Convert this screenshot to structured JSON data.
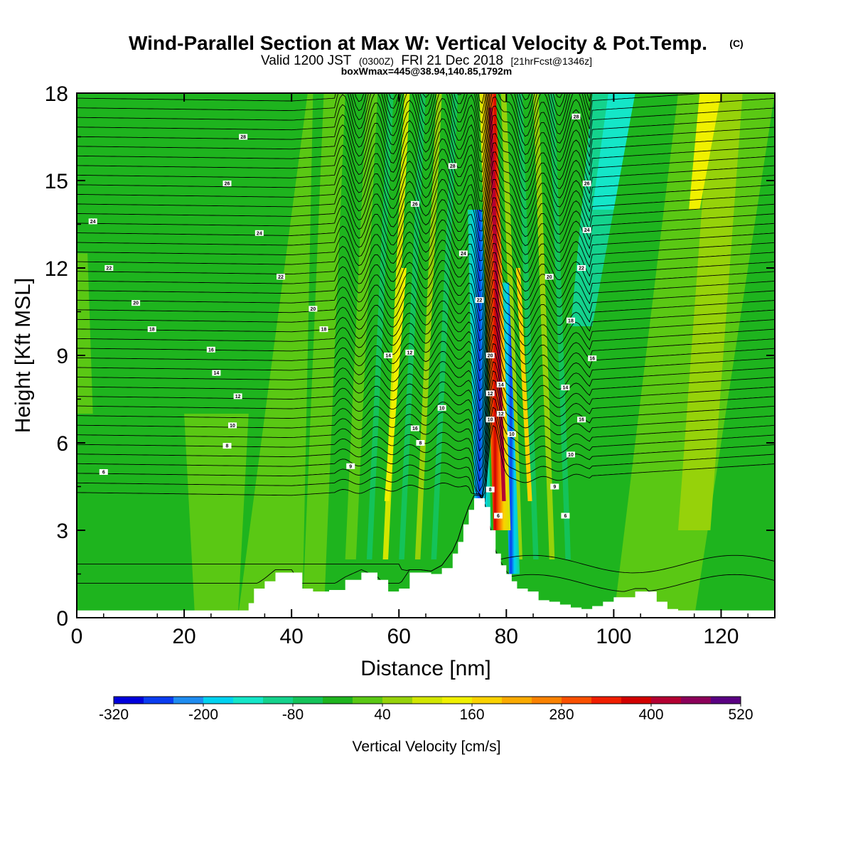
{
  "chart_data": {
    "type": "heatmap",
    "title": "Wind-Parallel Section at Max W: Vertical Velocity & Pot.Temp.",
    "title_mark": "(C)",
    "subtitle": {
      "prefix": "Valid 1200 JST",
      "utc": "(0300Z)",
      "date": "FRI 21 Dec 2018",
      "forecast": "[21hrFcst@1346z]"
    },
    "box_info": "boxWmax=445@38.94,140.85,1792m",
    "xlabel": "Distance [nm]",
    "ylabel": "Height [Kft MSL]",
    "xlim": [
      0,
      130
    ],
    "ylim": [
      0,
      18
    ],
    "x_ticks": [
      0,
      20,
      40,
      60,
      80,
      100,
      120
    ],
    "y_ticks": [
      0,
      3,
      6,
      9,
      12,
      15,
      18
    ],
    "colorbar": {
      "label": "Vertical Velocity [cm/s]",
      "tick_labels": [
        "-320",
        "-200",
        "-80",
        "40",
        "160",
        "280",
        "400",
        "520"
      ],
      "levels": [
        -320,
        -280,
        -240,
        -200,
        -160,
        -120,
        -80,
        -40,
        0,
        40,
        80,
        120,
        160,
        200,
        240,
        280,
        320,
        360,
        400,
        440,
        480,
        520
      ],
      "colors": [
        "#0000dc",
        "#0a3cf0",
        "#1e8cf0",
        "#00d2f0",
        "#14e6c8",
        "#14d28c",
        "#14c35a",
        "#1eb41e",
        "#5ac814",
        "#96d20a",
        "#d2e600",
        "#f0f000",
        "#fad200",
        "#faaa00",
        "#fa8200",
        "#fa5000",
        "#f01e00",
        "#d20000",
        "#b40032",
        "#8c005a",
        "#5a0082"
      ]
    },
    "velocity_max_band": {
      "updraft_core_x": [
        79,
        78,
        77,
        76.5
      ],
      "updraft_core_height": [
        3,
        8,
        13,
        18
      ],
      "downdraft_core_x": [
        76,
        75,
        74
      ],
      "downdraft_core_height": [
        3,
        7,
        11
      ],
      "max_w": 445
    },
    "terrain": {
      "distance": [
        0,
        30,
        32,
        33,
        35,
        37,
        40,
        42,
        44,
        47,
        50,
        53,
        56,
        58,
        60,
        62,
        64,
        66,
        68,
        70,
        71,
        72,
        73,
        74,
        75,
        76,
        77,
        78,
        79,
        80,
        81,
        82,
        84,
        86,
        88,
        90,
        92,
        94,
        96,
        98,
        100,
        104,
        106,
        108,
        110,
        112,
        114,
        130
      ],
      "height_kft": [
        0.25,
        0.25,
        0.5,
        1.0,
        1.25,
        1.55,
        1.55,
        1.0,
        0.9,
        0.95,
        1.3,
        1.55,
        1.3,
        0.9,
        1.0,
        1.55,
        1.55,
        1.5,
        1.7,
        2.2,
        2.6,
        3.2,
        3.7,
        4.1,
        4.1,
        3.8,
        3.0,
        2.2,
        1.8,
        1.5,
        1.25,
        1.0,
        0.9,
        0.6,
        0.55,
        0.45,
        0.35,
        0.3,
        0.4,
        0.55,
        0.7,
        0.9,
        0.9,
        0.55,
        0.3,
        0.25,
        0.25,
        0.25
      ]
    },
    "contour_labels": [
      {
        "text": "28",
        "x": 31,
        "y": 16.5
      },
      {
        "text": "26",
        "x": 28,
        "y": 14.9
      },
      {
        "text": "24",
        "x": 3,
        "y": 13.6
      },
      {
        "text": "24",
        "x": 34,
        "y": 13.2
      },
      {
        "text": "22",
        "x": 6,
        "y": 12.0
      },
      {
        "text": "22",
        "x": 38,
        "y": 11.7
      },
      {
        "text": "20",
        "x": 11,
        "y": 10.8
      },
      {
        "text": "20",
        "x": 44,
        "y": 10.6
      },
      {
        "text": "18",
        "x": 14,
        "y": 9.9
      },
      {
        "text": "18",
        "x": 46,
        "y": 9.9
      },
      {
        "text": "16",
        "x": 25,
        "y": 9.2
      },
      {
        "text": "14",
        "x": 26,
        "y": 8.4
      },
      {
        "text": "12",
        "x": 30,
        "y": 7.6
      },
      {
        "text": "10",
        "x": 29,
        "y": 6.6
      },
      {
        "text": "8",
        "x": 28,
        "y": 5.9
      },
      {
        "text": "6",
        "x": 5,
        "y": 5.0
      },
      {
        "text": "9",
        "x": 51,
        "y": 5.2
      },
      {
        "text": "14",
        "x": 58,
        "y": 9.0
      },
      {
        "text": "12",
        "x": 62,
        "y": 9.1
      },
      {
        "text": "10",
        "x": 68,
        "y": 7.2
      },
      {
        "text": "16",
        "x": 63,
        "y": 6.5
      },
      {
        "text": "8",
        "x": 64,
        "y": 6.0
      },
      {
        "text": "28",
        "x": 70,
        "y": 15.5
      },
      {
        "text": "26",
        "x": 63,
        "y": 14.2
      },
      {
        "text": "24",
        "x": 72,
        "y": 12.5
      },
      {
        "text": "22",
        "x": 75,
        "y": 10.9
      },
      {
        "text": "20",
        "x": 77,
        "y": 9.0
      },
      {
        "text": "14",
        "x": 79,
        "y": 8.0
      },
      {
        "text": "12",
        "x": 77,
        "y": 7.7
      },
      {
        "text": "12",
        "x": 79,
        "y": 7.0
      },
      {
        "text": "10",
        "x": 77,
        "y": 6.8
      },
      {
        "text": "10",
        "x": 81,
        "y": 6.3
      },
      {
        "text": "8",
        "x": 77,
        "y": 4.4
      },
      {
        "text": "6",
        "x": 78.5,
        "y": 3.5
      },
      {
        "text": "28",
        "x": 93,
        "y": 17.2
      },
      {
        "text": "26",
        "x": 95,
        "y": 14.9
      },
      {
        "text": "24",
        "x": 95,
        "y": 13.3
      },
      {
        "text": "22",
        "x": 94,
        "y": 12.0
      },
      {
        "text": "20",
        "x": 88,
        "y": 11.7
      },
      {
        "text": "18",
        "x": 92,
        "y": 10.2
      },
      {
        "text": "16",
        "x": 96,
        "y": 8.9
      },
      {
        "text": "14",
        "x": 91,
        "y": 7.9
      },
      {
        "text": "16",
        "x": 94,
        "y": 6.8
      },
      {
        "text": "10",
        "x": 92,
        "y": 5.6
      },
      {
        "text": "9",
        "x": 89,
        "y": 4.5
      },
      {
        "text": "6",
        "x": 91,
        "y": 3.5
      }
    ]
  }
}
